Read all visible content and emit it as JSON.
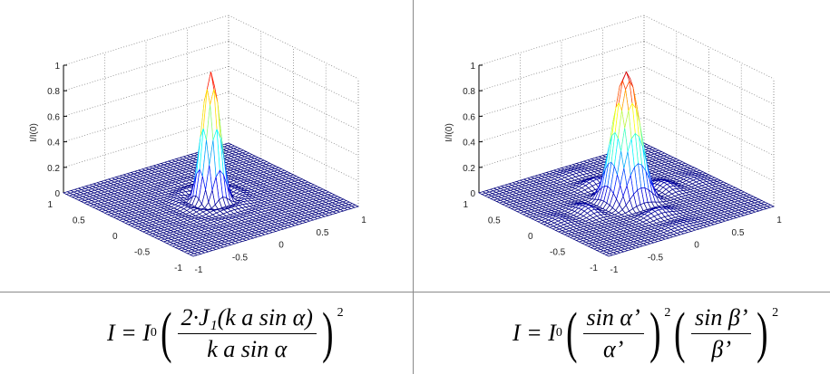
{
  "chart_data": [
    {
      "type": "surface",
      "name": "circular-aperture",
      "function": "airy",
      "zlabel": "I/I(0)",
      "xlim": [
        -1,
        1
      ],
      "ylim": [
        -1,
        1
      ],
      "zlim": [
        0,
        1
      ],
      "xticks": [
        "-1",
        "-0.5",
        "0",
        "0.5",
        "1"
      ],
      "yticks": [
        "-1",
        "-0.5",
        "0",
        "0.5",
        "1"
      ],
      "zticks": [
        "0",
        "0.2",
        "0.4",
        "0.6",
        "0.8",
        "1"
      ],
      "peak": 1.0,
      "grid": true,
      "colormap": "jet"
    },
    {
      "type": "surface",
      "name": "rectangular-aperture",
      "function": "sinc2-product",
      "zlabel": "I/I(0)",
      "xlim": [
        -1,
        1
      ],
      "ylim": [
        -1,
        1
      ],
      "zlim": [
        0,
        1
      ],
      "xticks": [
        "-1",
        "-0.5",
        "0",
        "0.5",
        "1"
      ],
      "yticks": [
        "-1",
        "-0.5",
        "0",
        "0.5",
        "1"
      ],
      "zticks": [
        "0",
        "0.2",
        "0.4",
        "0.6",
        "0.8",
        "1"
      ],
      "peak": 1.0,
      "grid": true,
      "colormap": "jet"
    }
  ],
  "formulas": [
    {
      "lhs": "I = I",
      "sub": "0",
      "factors": [
        {
          "num": "2·J₁(k a sin α)",
          "den": "k a sin α",
          "exp": "2"
        }
      ]
    },
    {
      "lhs": "I = I",
      "sub": "0",
      "factors": [
        {
          "num": "sin α’",
          "den": "α’",
          "exp": "2"
        },
        {
          "num": "sin β’",
          "den": "β’",
          "exp": "2"
        }
      ]
    }
  ],
  "colors": {
    "mesh_low": "#00008f",
    "divider": "#8a8a8a",
    "grid": "#999999"
  }
}
